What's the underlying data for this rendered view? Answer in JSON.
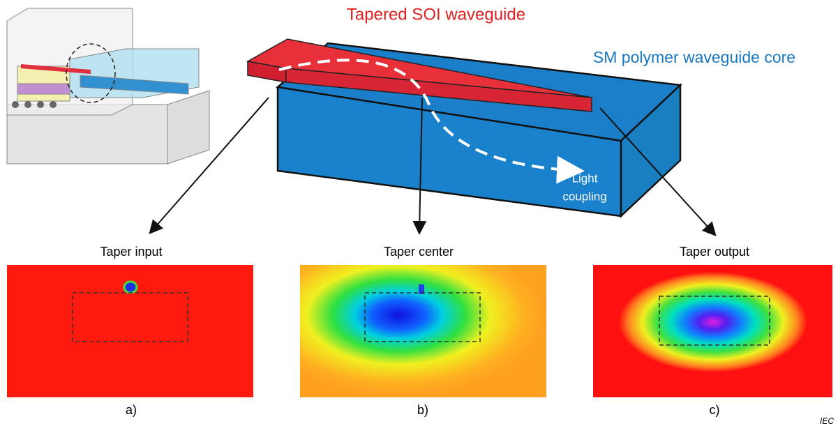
{
  "labels": {
    "taper": "Tapered SOI waveguide",
    "core": "SM polymer waveguide core",
    "light_coupling": [
      "Light",
      "coupling"
    ]
  },
  "panels": [
    {
      "title": "Taper input",
      "caption": "a)"
    },
    {
      "title": "Taper center",
      "caption": "b)"
    },
    {
      "title": "Taper output",
      "caption": "c)"
    }
  ],
  "credit": "IEC"
}
